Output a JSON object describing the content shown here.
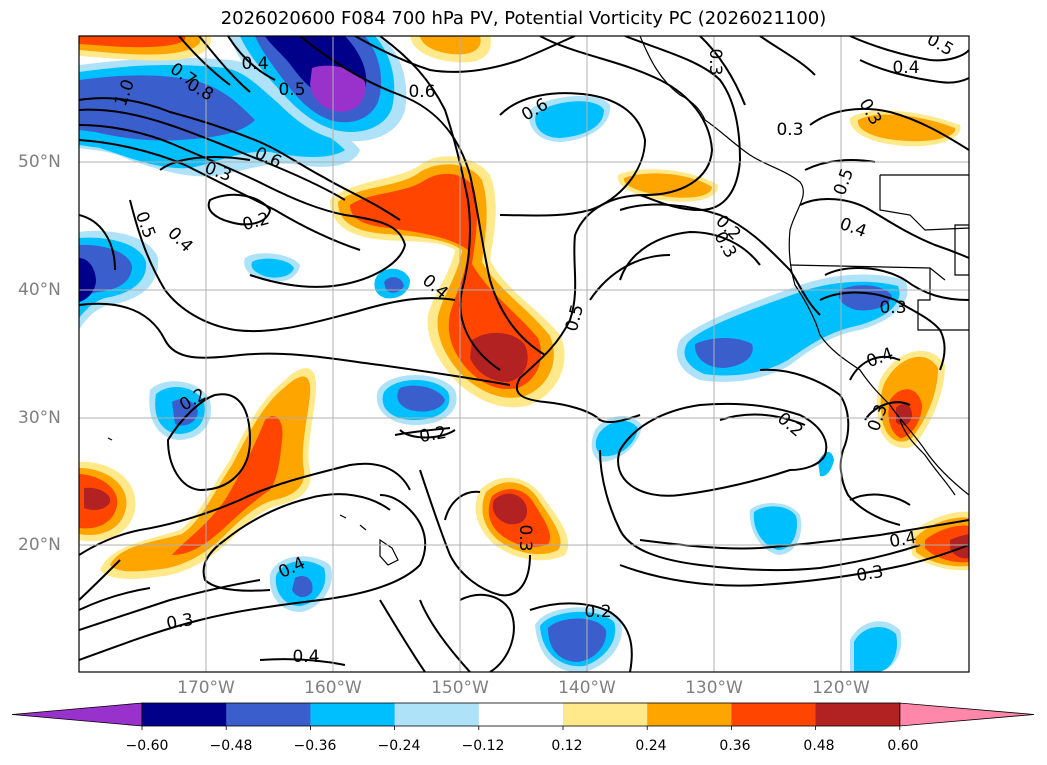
{
  "title": "2026020600 F084 700 hPa PV, Potential Vorticity PC (2026021100)",
  "lat_labels": [
    "50°N",
    "40°N",
    "30°N",
    "20°N"
  ],
  "lon_labels": [
    "170°W",
    "160°W",
    "150°W",
    "140°W",
    "130°W",
    "120°W"
  ],
  "colorbar": {
    "ticks": [
      "−0.60",
      "−0.48",
      "−0.36",
      "−0.24",
      "−0.12",
      "0.12",
      "0.24",
      "0.36",
      "0.48",
      "0.60"
    ],
    "colors": [
      "#9932CC",
      "#00008B",
      "#3A5FCD",
      "#00BFFF",
      "#AEE2F8",
      "#FFFFFF",
      "#FFE98A",
      "#FFA500",
      "#FF4500",
      "#B22222",
      "#FF88AA"
    ]
  },
  "contour_labels": [
    {
      "text": "0.4"
    },
    {
      "text": "0.5"
    },
    {
      "text": "0.7"
    },
    {
      "text": "0.8"
    },
    {
      "text": "1.0"
    },
    {
      "text": "0.6"
    },
    {
      "text": "0.3"
    },
    {
      "text": "0.6"
    },
    {
      "text": "0.2"
    },
    {
      "text": "0.5"
    },
    {
      "text": "0.4"
    },
    {
      "text": "0.4"
    },
    {
      "text": "0.6"
    },
    {
      "text": "0.5"
    },
    {
      "text": "0.3"
    },
    {
      "text": "0.3"
    },
    {
      "text": "0.4"
    },
    {
      "text": "0.3"
    },
    {
      "text": "0.5"
    },
    {
      "text": "0.4"
    },
    {
      "text": "0.3"
    },
    {
      "text": "0.4"
    },
    {
      "text": "0.3"
    },
    {
      "text": "0.2"
    },
    {
      "text": "0.2"
    },
    {
      "text": "0.2"
    },
    {
      "text": "0.3"
    },
    {
      "text": "0.4"
    },
    {
      "text": "0.3"
    },
    {
      "text": "0.2"
    },
    {
      "text": "0.2"
    },
    {
      "text": "0.4"
    },
    {
      "text": "0.3"
    },
    {
      "text": "0.5"
    },
    {
      "text": "0.3"
    },
    {
      "text": "0.4"
    }
  ]
}
